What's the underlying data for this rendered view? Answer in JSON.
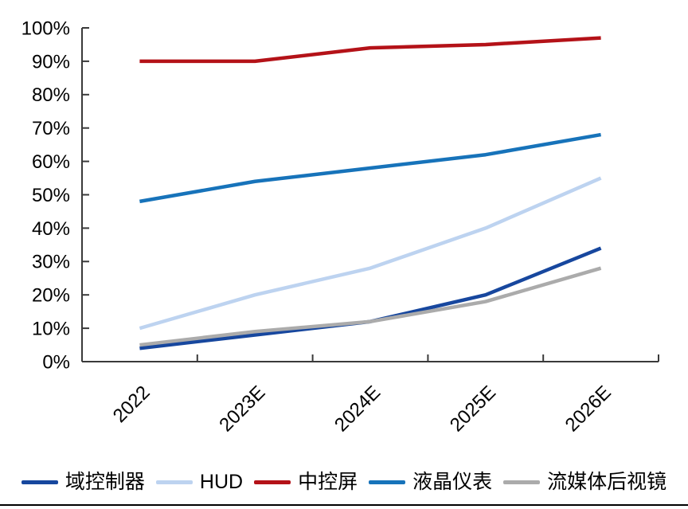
{
  "chart_data": {
    "type": "line",
    "title": "",
    "xlabel": "",
    "ylabel": "",
    "categories": [
      "2022",
      "2023E",
      "2024E",
      "2025E",
      "2026E"
    ],
    "series": [
      {
        "name": "域控制器",
        "color": "#17479E",
        "values": [
          4,
          8,
          12,
          20,
          34
        ]
      },
      {
        "name": "HUD",
        "color": "#BDD3F0",
        "values": [
          10,
          20,
          28,
          40,
          55
        ]
      },
      {
        "name": "中控屏",
        "color": "#B41218",
        "values": [
          90,
          90,
          94,
          95,
          97
        ]
      },
      {
        "name": "液晶仪表",
        "color": "#1773BA",
        "values": [
          48,
          54,
          58,
          62,
          68
        ]
      },
      {
        "name": "流媒体后视镜",
        "color": "#ABABAB",
        "values": [
          5,
          9,
          12,
          18,
          28
        ]
      }
    ],
    "ylim": [
      0,
      100
    ],
    "ytick_step": 10,
    "ytick_labels": [
      "0%",
      "10%",
      "20%",
      "30%",
      "40%",
      "50%",
      "60%",
      "70%",
      "80%",
      "90%",
      "100%"
    ],
    "grid": false,
    "legend_position": "bottom",
    "axis_color": "#3A3A3A",
    "x_label_rotation_deg": -45
  }
}
